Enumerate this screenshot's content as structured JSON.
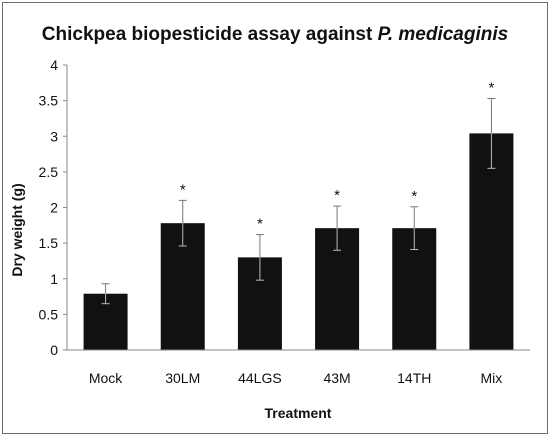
{
  "chart_data": {
    "type": "bar",
    "title": "Chickpea biopesticide assay against ",
    "title_italic": "P. medicaginis",
    "xlabel": "Treatment",
    "ylabel": "Dry weight (g)",
    "categories": [
      "Mock",
      "30LM",
      "44LGS",
      "43M",
      "14TH",
      "Mix"
    ],
    "values": [
      0.79,
      1.78,
      1.3,
      1.71,
      1.71,
      3.04
    ],
    "error": [
      0.14,
      0.32,
      0.32,
      0.31,
      0.3,
      0.49
    ],
    "significance": [
      "",
      "*",
      "*",
      "*",
      "*",
      "*"
    ],
    "ylim": [
      0,
      4
    ],
    "yticks": [
      "0",
      "0.5",
      "1",
      "1.5",
      "2",
      "2.5",
      "3",
      "3.5",
      "4"
    ],
    "ytick_values": [
      0,
      0.5,
      1,
      1.5,
      2,
      2.5,
      3,
      3.5,
      4
    ],
    "grid": false,
    "legend": "none",
    "bar_color": "#111111"
  }
}
